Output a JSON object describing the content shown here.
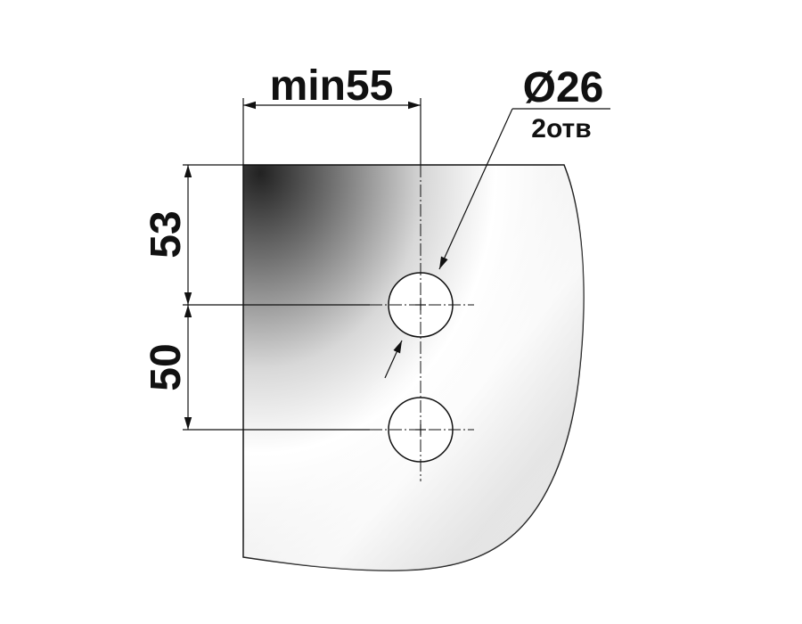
{
  "dimensions": {
    "width_label": "min55",
    "top_spacing_label": "53",
    "hole_spacing_label": "50",
    "diameter_label": "Ø26",
    "hole_count_label": "2отв"
  },
  "colors": {
    "line": "#111111",
    "plate_dark": "#2a2a2a",
    "plate_light": "#ffffff",
    "hole_fill": "#ffffff"
  }
}
